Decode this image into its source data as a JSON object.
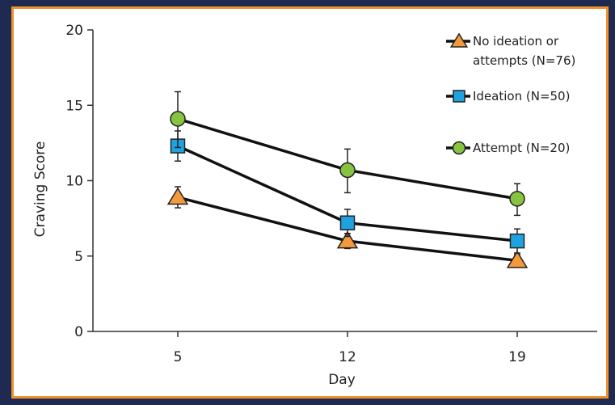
{
  "chart_data": {
    "type": "line",
    "title": "",
    "xlabel": "Day",
    "ylabel": "Craving Score",
    "categories": [
      "5",
      "12",
      "19"
    ],
    "ylim": [
      0,
      20
    ],
    "yticks": [
      "0",
      "5",
      "10",
      "15",
      "20"
    ],
    "grid": false,
    "legend_position": "top-right",
    "series": [
      {
        "name_lines": [
          "No ideation or",
          "attempts (N=76)"
        ],
        "marker": "triangle",
        "color": "#f39a3c",
        "values": [
          8.9,
          6.0,
          4.7
        ],
        "err_low": [
          8.2,
          5.5,
          4.3
        ],
        "err_high": [
          9.6,
          6.5,
          5.1
        ]
      },
      {
        "name_lines": [
          "Ideation (N=50)"
        ],
        "marker": "square",
        "color": "#1fa3e0",
        "values": [
          12.3,
          7.2,
          6.0
        ],
        "err_low": [
          11.3,
          6.3,
          5.2
        ],
        "err_high": [
          13.3,
          8.1,
          6.8
        ]
      },
      {
        "name_lines": [
          "Attempt (N=20)"
        ],
        "marker": "circle",
        "color": "#86c440",
        "values": [
          14.1,
          10.7,
          8.8
        ],
        "err_low": [
          12.2,
          9.2,
          7.7
        ],
        "err_high": [
          15.9,
          12.1,
          9.8
        ]
      }
    ],
    "line_color": "#111111"
  }
}
